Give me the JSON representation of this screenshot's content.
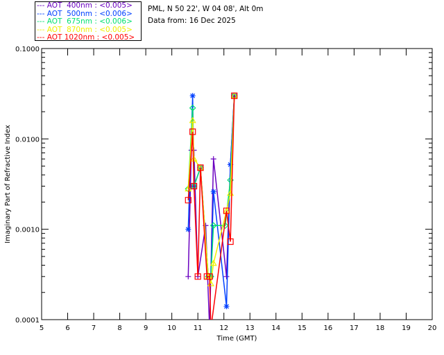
{
  "header": {
    "location": "PML, N 50 22', W 04 08', Alt 0m",
    "date": "Data from: 16 Dec 2025"
  },
  "chart_data": {
    "type": "line",
    "xlabel": "Time (GMT)",
    "ylabel": "Imaginary Part of Refractive Index",
    "xlim": [
      5,
      20
    ],
    "ylim": [
      0.0001,
      0.1
    ],
    "yscale": "log",
    "xticks": [
      "5",
      "6",
      "7",
      "8",
      "9",
      "10",
      "11",
      "12",
      "13",
      "14",
      "15",
      "16",
      "17",
      "18",
      "19",
      "20"
    ],
    "yticks": [
      "0.0001",
      "0.0010",
      "0.0100",
      "0.1000"
    ],
    "legend_placement": "top-left outside",
    "series": [
      {
        "name": "AOT  400nm : <0.005>",
        "color": "#6a00c0",
        "marker": "plus",
        "x": [
          10.63,
          10.75,
          10.85,
          11.0,
          11.3,
          11.45,
          11.6,
          12.1,
          12.25,
          12.4
        ],
        "y": [
          0.0003,
          0.0075,
          0.0075,
          0.0003,
          0.0011,
          8e-05,
          0.006,
          0.0003,
          0.0052,
          0.03
        ]
      },
      {
        "name": "AOT  500nm : <0.006>",
        "color": "#0040ff",
        "marker": "star",
        "x": [
          10.63,
          10.8,
          10.85,
          11.1,
          11.4,
          11.5,
          11.6,
          12.1,
          12.25,
          12.4
        ],
        "y": [
          0.001,
          0.03,
          0.003,
          0.0048,
          0.0003,
          0.0003,
          0.0026,
          0.00014,
          0.0052,
          0.03
        ]
      },
      {
        "name": "AOT  675nm : <0.006>",
        "color": "#00e070",
        "marker": "diamond",
        "x": [
          10.63,
          10.8,
          10.85,
          11.1,
          11.4,
          11.5,
          11.6,
          12.05,
          12.25,
          12.4
        ],
        "y": [
          0.0028,
          0.022,
          0.003,
          0.0048,
          0.0003,
          0.0003,
          0.0011,
          0.0011,
          0.0035,
          0.03
        ]
      },
      {
        "name": "AOT  870nm : <0.005>",
        "color": "#f0f000",
        "marker": "triangle",
        "x": [
          10.63,
          10.8,
          10.85,
          11.1,
          11.4,
          11.5,
          11.6,
          12.1,
          12.25,
          12.4
        ],
        "y": [
          0.0028,
          0.016,
          0.006,
          0.0048,
          0.0003,
          0.00025,
          0.00042,
          0.0016,
          0.0025,
          0.03
        ]
      },
      {
        "name": "AOT 1020nm : <0.005>",
        "color": "#ff0000",
        "marker": "square",
        "x": [
          10.63,
          10.8,
          10.85,
          11.0,
          11.1,
          11.35,
          11.45,
          11.5,
          12.1,
          12.25,
          12.4
        ],
        "y": [
          0.0021,
          0.012,
          0.003,
          0.0003,
          0.0048,
          0.0003,
          0.0003,
          8e-05,
          0.0016,
          0.00073,
          0.03
        ]
      }
    ]
  }
}
